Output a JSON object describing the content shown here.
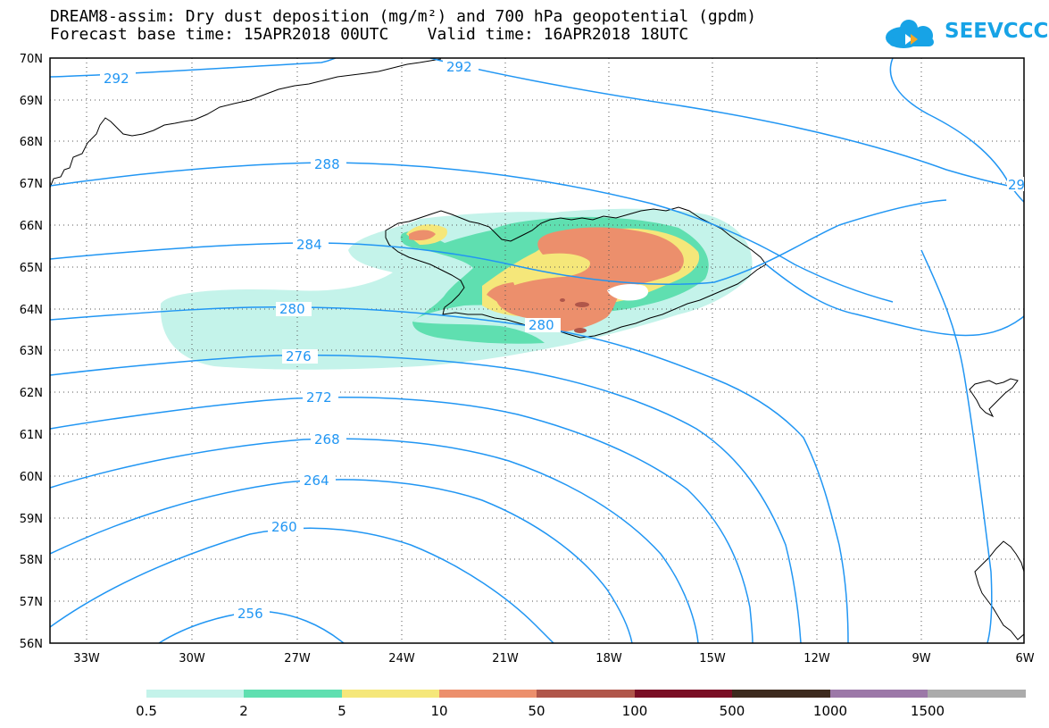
{
  "header": {
    "line1": "DREAM8-assim: Dry dust deposition (mg/m²) and 700 hPa geopotential (gpdm)",
    "line2": "Forecast base time: 15APR2018 00UTC    Valid time: 16APR2018 18UTC",
    "logo_text": "SEEVCCC"
  },
  "axes": {
    "lat_labels": [
      "70N",
      "69N",
      "68N",
      "67N",
      "66N",
      "65N",
      "64N",
      "63N",
      "62N",
      "61N",
      "60N",
      "59N",
      "58N",
      "57N",
      "56N"
    ],
    "lon_labels": [
      "33W",
      "30W",
      "27W",
      "24W",
      "21W",
      "18W",
      "15W",
      "12W",
      "9W",
      "6W"
    ]
  },
  "contour_labels": [
    "292",
    "292",
    "288",
    "284",
    "280",
    "280",
    "276",
    "272",
    "268",
    "264",
    "260",
    "256",
    "29"
  ],
  "legend": {
    "labels": [
      "0.5",
      "2",
      "5",
      "10",
      "50",
      "100",
      "500",
      "1000",
      "1500"
    ],
    "colors": [
      "#c4f3ea",
      "#5fdfb0",
      "#f5e77a",
      "#ec8f6c",
      "#b0564a",
      "#7a0e25",
      "#3d2a1e",
      "#9c78a8",
      "#ababab"
    ]
  },
  "colors": {
    "contour": "#2196f3",
    "coastline": "#000000"
  }
}
